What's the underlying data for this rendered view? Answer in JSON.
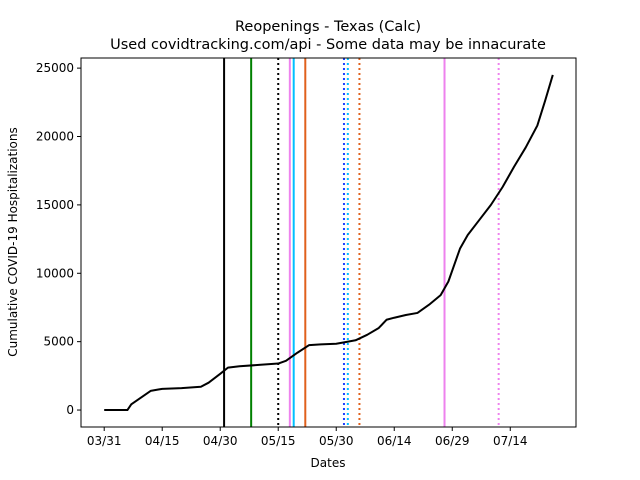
{
  "chart_data": {
    "type": "line",
    "title": "Reopenings - Texas (Calc)",
    "subtitle": "Used covidtracking.com/api - Some data may be innacurate",
    "x_label": "Dates",
    "y_label": "Cumulative COVID-19 Hospitalizations",
    "x": [
      "03/31",
      "04/06",
      "04/07",
      "04/12",
      "04/14",
      "04/15",
      "04/20",
      "04/25",
      "04/27",
      "04/30",
      "05/02",
      "05/05",
      "05/10",
      "05/15",
      "05/17",
      "05/20",
      "05/23",
      "05/26",
      "05/30",
      "06/01",
      "06/04",
      "06/07",
      "06/10",
      "06/12",
      "06/14",
      "06/17",
      "06/20",
      "06/23",
      "06/26",
      "06/28",
      "07/01",
      "07/03",
      "07/06",
      "07/09",
      "07/12",
      "07/15",
      "07/18",
      "07/21",
      "07/23",
      "07/25"
    ],
    "series": [
      {
        "name": "Cumulative COVID-19 Hospitalizations",
        "color": "#000000",
        "values": [
          0,
          0,
          420,
          1400,
          1500,
          1550,
          1600,
          1700,
          2000,
          2650,
          3100,
          3200,
          3300,
          3400,
          3600,
          4200,
          4750,
          4800,
          4850,
          4950,
          5100,
          5500,
          6000,
          6600,
          6750,
          6950,
          7100,
          7700,
          8400,
          9400,
          11800,
          12800,
          13900,
          15000,
          16300,
          17800,
          19200,
          20800,
          22600,
          24500
        ]
      }
    ],
    "vlines": [
      {
        "x": "05/01",
        "color": "#000000",
        "style": "solid"
      },
      {
        "x": "05/08",
        "color": "#008000",
        "style": "solid"
      },
      {
        "x": "05/15",
        "color": "#000000",
        "style": "dotted"
      },
      {
        "x": "05/18",
        "color": "#ee82ee",
        "style": "solid"
      },
      {
        "x": "05/19",
        "color": "#00bfff",
        "style": "solid"
      },
      {
        "x": "05/22",
        "color": "#e0601c",
        "style": "solid"
      },
      {
        "x": "06/01",
        "color": "#1f3fff",
        "style": "dotted"
      },
      {
        "x": "06/02",
        "color": "#00bfff",
        "style": "dotted"
      },
      {
        "x": "06/05",
        "color": "#e0601c",
        "style": "dotted"
      },
      {
        "x": "06/27",
        "color": "#ee82ee",
        "style": "solid"
      },
      {
        "x": "07/11",
        "color": "#ee82ee",
        "style": "dotted"
      }
    ],
    "xlim": [
      "03/25",
      "07/31"
    ],
    "xticks": [
      "03/31",
      "04/15",
      "04/30",
      "05/15",
      "05/30",
      "06/14",
      "06/29",
      "07/14"
    ],
    "ylim": [
      -1240,
      25740
    ],
    "yticks": [
      0,
      5000,
      10000,
      15000,
      20000,
      25000
    ],
    "grid": false
  }
}
